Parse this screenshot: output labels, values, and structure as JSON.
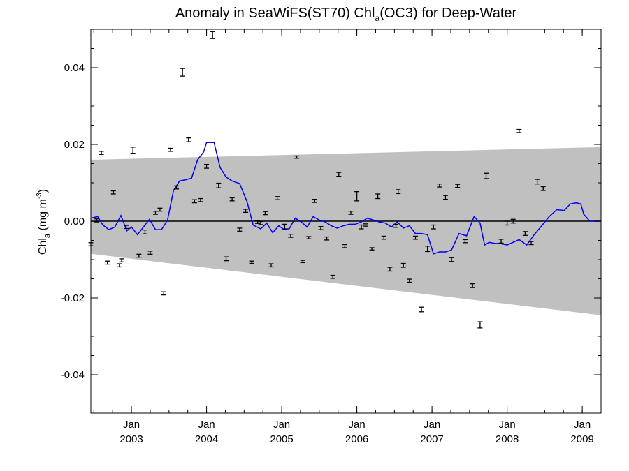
{
  "chart_data": {
    "type": "line",
    "title": {
      "main": "Anomaly in SeaWiFS(ST70) Chl",
      "sub": "a",
      "rest": "(OC3) for Deep-Water"
    },
    "ylabel": {
      "main": "Chl",
      "sub": "a",
      "unit": " (mg m",
      "sup": "-3",
      "close": ")"
    },
    "xlim": [
      2002.46,
      2009.25
    ],
    "ylim": [
      -0.05,
      0.05
    ],
    "y_ticks": [
      -0.04,
      -0.02,
      0.0,
      0.02,
      0.04
    ],
    "y_tick_labels": [
      "-0.04",
      "-0.02",
      "0.00",
      "0.02",
      "0.04"
    ],
    "x_ticks": [
      {
        "value": 2003.0,
        "month": "Jan",
        "year": "2003"
      },
      {
        "value": 2004.0,
        "month": "Jan",
        "year": "2004"
      },
      {
        "value": 2005.0,
        "month": "Jan",
        "year": "2005"
      },
      {
        "value": 2006.0,
        "month": "Jan",
        "year": "2006"
      },
      {
        "value": 2007.0,
        "month": "Jan",
        "year": "2007"
      },
      {
        "value": 2008.0,
        "month": "Jan",
        "year": "2008"
      },
      {
        "value": 2009.0,
        "month": "Jan",
        "year": "2009"
      }
    ],
    "confidence_band": {
      "x": [
        2002.46,
        2009.25
      ],
      "upper": [
        0.016,
        0.0193
      ],
      "lower": [
        -0.0085,
        -0.0245
      ],
      "color": "#c0c0c0"
    },
    "zero_line": 0.0,
    "colors": {
      "smooth": "#0000ff",
      "points": "#000000",
      "band": "#c0c0c0"
    },
    "series": [
      {
        "type": "line",
        "x": [
          2002.46,
          2002.55,
          2002.62,
          2002.7,
          2002.78,
          2002.86,
          2002.94,
          2003.0,
          2003.08,
          2003.16,
          2003.24,
          2003.32,
          2003.4,
          2003.48,
          2003.56,
          2003.64,
          2003.72,
          2003.8,
          2003.88,
          2003.96,
          2004.0,
          2004.1,
          2004.18,
          2004.26,
          2004.34,
          2004.44,
          2004.54,
          2004.62,
          2004.72,
          2004.8,
          2004.88,
          2004.96,
          2005.02,
          2005.1,
          2005.18,
          2005.26,
          2005.34,
          2005.42,
          2005.5,
          2005.58,
          2005.66,
          2005.74,
          2005.82,
          2005.9,
          2005.98,
          2006.06,
          2006.14,
          2006.22,
          2006.3,
          2006.38,
          2006.46,
          2006.54,
          2006.62,
          2006.7,
          2006.78,
          2006.86,
          2006.94,
          2007.02,
          2007.1,
          2007.18,
          2007.26,
          2007.36,
          2007.46,
          2007.56,
          2007.64,
          2007.7,
          2007.76,
          2007.84,
          2007.9,
          2008.0,
          2008.16,
          2008.26,
          2008.36,
          2008.46,
          2008.56,
          2008.66,
          2008.76,
          2008.84,
          2008.92,
          2008.98,
          2009.02,
          2009.1,
          2009.18,
          2009.25
        ],
        "y": [
          0.0008,
          0.0012,
          -0.001,
          -0.0022,
          -0.0015,
          0.0015,
          -0.0025,
          -0.0015,
          -0.0035,
          -0.0015,
          0.0005,
          -0.0022,
          -0.0022,
          0.0003,
          0.008,
          0.0105,
          0.0108,
          0.0112,
          0.016,
          0.018,
          0.0205,
          0.0205,
          0.014,
          0.0115,
          0.0105,
          0.0098,
          0.005,
          -0.001,
          -0.002,
          -0.0005,
          -0.003,
          -0.0012,
          -0.002,
          -0.002,
          0.0008,
          -0.0002,
          -0.0015,
          0.0012,
          0.0003,
          -0.0002,
          -0.0012,
          -0.0018,
          -0.0012,
          -0.0008,
          -0.0008,
          -0.0002,
          0.0008,
          0.0003,
          -0.0002,
          -0.0005,
          -0.0015,
          -0.0002,
          -0.0018,
          -0.0012,
          -0.0032,
          -0.0032,
          -0.0035,
          -0.0085,
          -0.008,
          -0.008,
          -0.0075,
          -0.0032,
          -0.0038,
          0.0012,
          -0.0005,
          -0.0062,
          -0.0055,
          -0.0058,
          -0.0058,
          -0.0062,
          -0.0048,
          -0.0062,
          -0.0035,
          -0.0012,
          0.0012,
          0.003,
          0.0028,
          0.0045,
          0.0048,
          0.0045,
          0.0018,
          0.0,
          0.0,
          0.0
        ]
      },
      {
        "type": "errorbar",
        "points": [
          {
            "x": 2002.46,
            "y": -0.006,
            "e": 0.0004
          },
          {
            "x": 2002.54,
            "y": 0.0002,
            "e": 0.0004
          },
          {
            "x": 2002.6,
            "y": 0.0178,
            "e": 0.0004
          },
          {
            "x": 2002.68,
            "y": -0.0108,
            "e": 0.0004
          },
          {
            "x": 2002.76,
            "y": 0.0075,
            "e": 0.0004
          },
          {
            "x": 2002.84,
            "y": -0.0115,
            "e": 0.0004
          },
          {
            "x": 2002.87,
            "y": -0.0102,
            "e": 0.0004
          },
          {
            "x": 2002.93,
            "y": -0.0015,
            "e": 0.0004
          },
          {
            "x": 2003.02,
            "y": 0.0185,
            "e": 0.0008
          },
          {
            "x": 2003.1,
            "y": -0.009,
            "e": 0.0004
          },
          {
            "x": 2003.18,
            "y": -0.0028,
            "e": 0.0005
          },
          {
            "x": 2003.25,
            "y": -0.0082,
            "e": 0.0004
          },
          {
            "x": 2003.32,
            "y": 0.0022,
            "e": 0.0004
          },
          {
            "x": 2003.38,
            "y": 0.003,
            "e": 0.0004
          },
          {
            "x": 2003.43,
            "y": -0.0188,
            "e": 0.0004
          },
          {
            "x": 2003.52,
            "y": 0.0186,
            "e": 0.0004
          },
          {
            "x": 2003.6,
            "y": 0.0088,
            "e": 0.0004
          },
          {
            "x": 2003.68,
            "y": 0.0388,
            "e": 0.001
          },
          {
            "x": 2003.76,
            "y": 0.0212,
            "e": 0.0005
          },
          {
            "x": 2003.84,
            "y": 0.0052,
            "e": 0.0004
          },
          {
            "x": 2003.92,
            "y": 0.0055,
            "e": 0.0004
          },
          {
            "x": 2004.0,
            "y": 0.0143,
            "e": 0.0005
          },
          {
            "x": 2004.08,
            "y": 0.0485,
            "e": 0.0009
          },
          {
            "x": 2004.16,
            "y": 0.0093,
            "e": 0.0006
          },
          {
            "x": 2004.26,
            "y": -0.0098,
            "e": 0.0005
          },
          {
            "x": 2004.34,
            "y": 0.0057,
            "e": 0.0004
          },
          {
            "x": 2004.44,
            "y": -0.0022,
            "e": 0.0004
          },
          {
            "x": 2004.52,
            "y": 0.0027,
            "e": 0.0004
          },
          {
            "x": 2004.6,
            "y": -0.0107,
            "e": 0.0003
          },
          {
            "x": 2004.68,
            "y": -0.0002,
            "e": 0.0004
          },
          {
            "x": 2004.72,
            "y": -0.0005,
            "e": 0.0004
          },
          {
            "x": 2004.78,
            "y": 0.0021,
            "e": 0.0004
          },
          {
            "x": 2004.86,
            "y": -0.0115,
            "e": 0.0004
          },
          {
            "x": 2004.94,
            "y": 0.006,
            "e": 0.0004
          },
          {
            "x": 2005.04,
            "y": -0.0015,
            "e": 0.0007
          },
          {
            "x": 2005.12,
            "y": -0.0038,
            "e": 0.0004
          },
          {
            "x": 2005.2,
            "y": 0.0167,
            "e": 0.0003
          },
          {
            "x": 2005.28,
            "y": -0.0105,
            "e": 0.0003
          },
          {
            "x": 2005.36,
            "y": -0.0043,
            "e": 0.0003
          },
          {
            "x": 2005.44,
            "y": 0.0053,
            "e": 0.0004
          },
          {
            "x": 2005.52,
            "y": -0.0018,
            "e": 0.0004
          },
          {
            "x": 2005.6,
            "y": -0.0045,
            "e": 0.0004
          },
          {
            "x": 2005.68,
            "y": -0.0145,
            "e": 0.0004
          },
          {
            "x": 2005.76,
            "y": 0.0122,
            "e": 0.0005
          },
          {
            "x": 2005.84,
            "y": -0.0065,
            "e": 0.0004
          },
          {
            "x": 2005.92,
            "y": 0.0022,
            "e": 0.0004
          },
          {
            "x": 2006.0,
            "y": 0.0065,
            "e": 0.0012
          },
          {
            "x": 2006.06,
            "y": -0.0015,
            "e": 0.0005
          },
          {
            "x": 2006.12,
            "y": -0.001,
            "e": 0.0003
          },
          {
            "x": 2006.2,
            "y": -0.0072,
            "e": 0.0003
          },
          {
            "x": 2006.28,
            "y": 0.0065,
            "e": 0.0006
          },
          {
            "x": 2006.36,
            "y": -0.0043,
            "e": 0.0004
          },
          {
            "x": 2006.44,
            "y": -0.0125,
            "e": 0.0005
          },
          {
            "x": 2006.52,
            "y": -0.0012,
            "e": 0.0004
          },
          {
            "x": 2006.55,
            "y": 0.0077,
            "e": 0.0005
          },
          {
            "x": 2006.62,
            "y": -0.0115,
            "e": 0.0005
          },
          {
            "x": 2006.7,
            "y": -0.0155,
            "e": 0.0004
          },
          {
            "x": 2006.78,
            "y": -0.0043,
            "e": 0.0004
          },
          {
            "x": 2006.86,
            "y": -0.023,
            "e": 0.0006
          },
          {
            "x": 2006.94,
            "y": -0.0072,
            "e": 0.0007
          },
          {
            "x": 2007.02,
            "y": -0.0015,
            "e": 0.0005
          },
          {
            "x": 2007.1,
            "y": 0.0093,
            "e": 0.0004
          },
          {
            "x": 2007.18,
            "y": 0.0062,
            "e": 0.0005
          },
          {
            "x": 2007.26,
            "y": -0.01,
            "e": 0.0005
          },
          {
            "x": 2007.34,
            "y": 0.0092,
            "e": 0.0004
          },
          {
            "x": 2007.44,
            "y": -0.0052,
            "e": 0.0004
          },
          {
            "x": 2007.54,
            "y": -0.0168,
            "e": 0.0005
          },
          {
            "x": 2007.64,
            "y": -0.027,
            "e": 0.0008
          },
          {
            "x": 2007.72,
            "y": 0.0118,
            "e": 0.0007
          },
          {
            "x": 2007.92,
            "y": -0.0052,
            "e": 0.0005
          },
          {
            "x": 2008.0,
            "y": -0.0005,
            "e": 0.0005
          },
          {
            "x": 2008.08,
            "y": 0.0,
            "e": 0.0005
          },
          {
            "x": 2008.16,
            "y": 0.0235,
            "e": 0.0004
          },
          {
            "x": 2008.24,
            "y": -0.0032,
            "e": 0.0005
          },
          {
            "x": 2008.32,
            "y": -0.0057,
            "e": 0.0004
          },
          {
            "x": 2008.4,
            "y": 0.0103,
            "e": 0.0006
          },
          {
            "x": 2008.48,
            "y": 0.0085,
            "e": 0.0005
          }
        ]
      }
    ]
  }
}
